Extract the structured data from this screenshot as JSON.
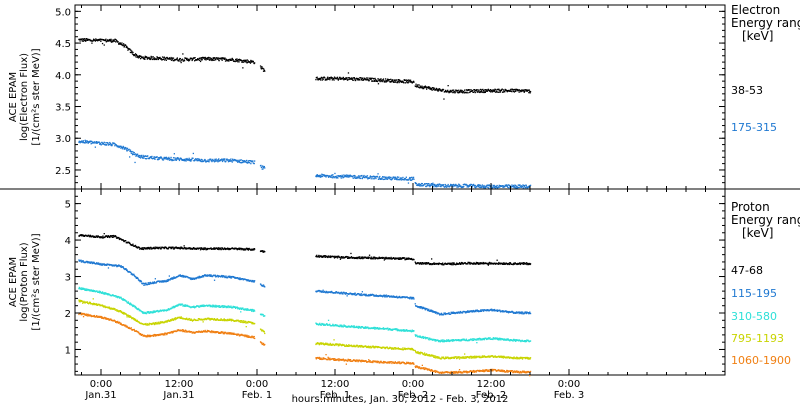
{
  "chart_data": {
    "type": "scatter",
    "x_axis": {
      "label": "hours:minutes, Jan. 30, 2012 - Feb.  3, 2012",
      "unit": "hours since Jan. 30, 2012 00:00",
      "range": [
        20,
        120
      ],
      "ticks": [
        {
          "x": 24,
          "time": "0:00",
          "date": "Jan.31"
        },
        {
          "x": 36,
          "time": "12:00",
          "date": "Jan.31"
        },
        {
          "x": 48,
          "time": "0:00",
          "date": "Feb.  1"
        },
        {
          "x": 60,
          "time": "12:00",
          "date": "Feb.  1"
        },
        {
          "x": 72,
          "time": "0:00",
          "date": "Feb.  2"
        },
        {
          "x": 84,
          "time": "12:00",
          "date": "Feb.  2"
        },
        {
          "x": 96,
          "time": "0:00",
          "date": "Feb.  3"
        }
      ]
    },
    "panels": [
      {
        "id": "electron",
        "ylabel": [
          "ACE EPAM",
          "log(Electron Flux)",
          "[1/(cm²s ster MeV)]"
        ],
        "ylim": [
          2.2,
          5.1
        ],
        "yticks": [
          "2.5",
          "3.0",
          "3.5",
          "4.0",
          "4.5",
          "5.0"
        ],
        "legend_title": [
          "Electron",
          "Energy ranges",
          "[keV]"
        ],
        "series": [
          {
            "name": "38-53",
            "color": "#000000",
            "points": [
              [
                20.5,
                4.56
              ],
              [
                24,
                4.55
              ],
              [
                26,
                4.55
              ],
              [
                27.5,
                4.47
              ],
              [
                29,
                4.33
              ],
              [
                30,
                4.28
              ],
              [
                33,
                4.27
              ],
              [
                36,
                4.25
              ],
              [
                40,
                4.26
              ],
              [
                44,
                4.25
              ],
              [
                47.5,
                4.21
              ],
              [
                48.5,
                4.13
              ],
              [
                49,
                4.08
              ],
              [
                57,
                3.95
              ],
              [
                60,
                3.95
              ],
              [
                64,
                3.94
              ],
              [
                68,
                3.92
              ],
              [
                72,
                3.9
              ],
              [
                72.3,
                3.84
              ],
              [
                77,
                3.75
              ],
              [
                80,
                3.75
              ],
              [
                84,
                3.76
              ],
              [
                88,
                3.76
              ],
              [
                90,
                3.75
              ]
            ],
            "gaps": [
              [
                47.6,
                48.4
              ],
              [
                49.1,
                56.9
              ],
              [
                72.1,
                72.2
              ]
            ]
          },
          {
            "name": "175-315",
            "color": "#1f78d1",
            "points": [
              [
                20.5,
                2.96
              ],
              [
                24,
                2.93
              ],
              [
                26,
                2.91
              ],
              [
                27.5,
                2.86
              ],
              [
                29,
                2.76
              ],
              [
                30,
                2.72
              ],
              [
                33,
                2.69
              ],
              [
                36,
                2.68
              ],
              [
                40,
                2.66
              ],
              [
                44,
                2.66
              ],
              [
                47.5,
                2.63
              ],
              [
                48.5,
                2.56
              ],
              [
                49,
                2.54
              ],
              [
                57,
                2.42
              ],
              [
                60,
                2.41
              ],
              [
                64,
                2.4
              ],
              [
                68,
                2.38
              ],
              [
                72,
                2.37
              ],
              [
                72.3,
                2.28
              ],
              [
                77,
                2.26
              ],
              [
                80,
                2.26
              ],
              [
                84,
                2.25
              ],
              [
                88,
                2.25
              ],
              [
                90,
                2.25
              ]
            ],
            "gaps": [
              [
                47.6,
                48.4
              ],
              [
                49.1,
                56.9
              ],
              [
                72.1,
                72.2
              ]
            ]
          }
        ]
      },
      {
        "id": "proton",
        "ylabel": [
          "ACE EPAM",
          "log(Proton Flux)",
          "[1/(cm²s ster MeV)]"
        ],
        "ylim": [
          0.3,
          5.4
        ],
        "yticks": [
          "1",
          "2",
          "3",
          "4",
          "5"
        ],
        "legend_title": [
          "Proton",
          "Energy ranges",
          "[keV]"
        ],
        "series": [
          {
            "name": "47-68",
            "color": "#000000",
            "points": [
              [
                20.5,
                4.15
              ],
              [
                24,
                4.1
              ],
              [
                26,
                4.12
              ],
              [
                28,
                3.95
              ],
              [
                30,
                3.78
              ],
              [
                32,
                3.8
              ],
              [
                36,
                3.8
              ],
              [
                40,
                3.78
              ],
              [
                44,
                3.78
              ],
              [
                47.5,
                3.76
              ],
              [
                48.5,
                3.72
              ],
              [
                49,
                3.7
              ],
              [
                57,
                3.58
              ],
              [
                60,
                3.55
              ],
              [
                64,
                3.53
              ],
              [
                68,
                3.52
              ],
              [
                72,
                3.5
              ],
              [
                72.3,
                3.38
              ],
              [
                77,
                3.36
              ],
              [
                80,
                3.38
              ],
              [
                84,
                3.38
              ],
              [
                88,
                3.37
              ],
              [
                90,
                3.37
              ]
            ],
            "gaps": [
              [
                47.6,
                48.4
              ],
              [
                49.1,
                56.9
              ],
              [
                72.1,
                72.2
              ]
            ]
          },
          {
            "name": "115-195",
            "color": "#1f78d1",
            "points": [
              [
                20.5,
                3.45
              ],
              [
                24,
                3.35
              ],
              [
                26,
                3.32
              ],
              [
                27,
                3.3
              ],
              [
                29,
                3.05
              ],
              [
                30.5,
                2.8
              ],
              [
                32,
                2.85
              ],
              [
                34,
                2.9
              ],
              [
                36,
                3.05
              ],
              [
                38,
                2.95
              ],
              [
                40,
                3.05
              ],
              [
                44,
                3.0
              ],
              [
                47.5,
                2.88
              ],
              [
                48.5,
                2.8
              ],
              [
                49,
                2.75
              ],
              [
                57,
                2.62
              ],
              [
                60,
                2.58
              ],
              [
                64,
                2.52
              ],
              [
                68,
                2.48
              ],
              [
                72,
                2.42
              ],
              [
                72.3,
                2.22
              ],
              [
                74,
                2.12
              ],
              [
                76,
                1.98
              ],
              [
                80,
                2.05
              ],
              [
                84,
                2.1
              ],
              [
                88,
                2.02
              ],
              [
                90,
                2.02
              ]
            ],
            "gaps": [
              [
                47.6,
                48.4
              ],
              [
                49.1,
                56.9
              ],
              [
                72.1,
                72.2
              ]
            ]
          },
          {
            "name": "310-580",
            "color": "#2ee0d8",
            "points": [
              [
                20.5,
                2.7
              ],
              [
                24,
                2.58
              ],
              [
                26,
                2.48
              ],
              [
                27,
                2.42
              ],
              [
                29,
                2.2
              ],
              [
                30.5,
                2.02
              ],
              [
                32,
                2.05
              ],
              [
                34,
                2.1
              ],
              [
                36,
                2.25
              ],
              [
                38,
                2.18
              ],
              [
                40,
                2.22
              ],
              [
                44,
                2.18
              ],
              [
                47.5,
                2.08
              ],
              [
                48.5,
                1.98
              ],
              [
                49,
                1.95
              ],
              [
                57,
                1.72
              ],
              [
                60,
                1.68
              ],
              [
                64,
                1.62
              ],
              [
                68,
                1.58
              ],
              [
                72,
                1.52
              ],
              [
                72.3,
                1.4
              ],
              [
                74,
                1.32
              ],
              [
                76,
                1.25
              ],
              [
                80,
                1.28
              ],
              [
                84,
                1.32
              ],
              [
                88,
                1.26
              ],
              [
                90,
                1.25
              ]
            ],
            "gaps": [
              [
                47.6,
                48.4
              ],
              [
                49.1,
                56.9
              ],
              [
                72.1,
                72.2
              ]
            ]
          },
          {
            "name": "795-1193",
            "color": "#c8d400",
            "points": [
              [
                20.5,
                2.35
              ],
              [
                24,
                2.22
              ],
              [
                26,
                2.12
              ],
              [
                27,
                2.05
              ],
              [
                29,
                1.85
              ],
              [
                30.5,
                1.7
              ],
              [
                32,
                1.72
              ],
              [
                34,
                1.78
              ],
              [
                36,
                1.9
              ],
              [
                38,
                1.82
              ],
              [
                40,
                1.86
              ],
              [
                44,
                1.82
              ],
              [
                47.5,
                1.74
              ],
              [
                48.5,
                1.55
              ],
              [
                49,
                1.5
              ],
              [
                57,
                1.18
              ],
              [
                60,
                1.15
              ],
              [
                64,
                1.1
              ],
              [
                68,
                1.06
              ],
              [
                72,
                1.02
              ],
              [
                72.3,
                0.95
              ],
              [
                74,
                0.88
              ],
              [
                76,
                0.78
              ],
              [
                80,
                0.8
              ],
              [
                84,
                0.83
              ],
              [
                88,
                0.78
              ],
              [
                90,
                0.78
              ]
            ],
            "gaps": [
              [
                47.6,
                48.4
              ],
              [
                49.1,
                56.9
              ],
              [
                72.1,
                72.2
              ]
            ]
          },
          {
            "name": "1060-1900",
            "color": "#f07f12",
            "points": [
              [
                20.5,
                2.0
              ],
              [
                24,
                1.9
              ],
              [
                26,
                1.8
              ],
              [
                27,
                1.72
              ],
              [
                29,
                1.55
              ],
              [
                30.5,
                1.38
              ],
              [
                32,
                1.4
              ],
              [
                34,
                1.45
              ],
              [
                36,
                1.55
              ],
              [
                38,
                1.48
              ],
              [
                40,
                1.52
              ],
              [
                44,
                1.45
              ],
              [
                47.5,
                1.35
              ],
              [
                48.5,
                1.2
              ],
              [
                49,
                1.15
              ],
              [
                57,
                0.78
              ],
              [
                60,
                0.74
              ],
              [
                64,
                0.7
              ],
              [
                68,
                0.66
              ],
              [
                72,
                0.64
              ],
              [
                72.3,
                0.55
              ],
              [
                74,
                0.48
              ],
              [
                76,
                0.38
              ],
              [
                80,
                0.4
              ],
              [
                84,
                0.45
              ],
              [
                88,
                0.4
              ],
              [
                90,
                0.4
              ]
            ],
            "gaps": [
              [
                47.6,
                48.4
              ],
              [
                49.1,
                56.9
              ],
              [
                72.1,
                72.2
              ]
            ]
          }
        ]
      }
    ]
  }
}
